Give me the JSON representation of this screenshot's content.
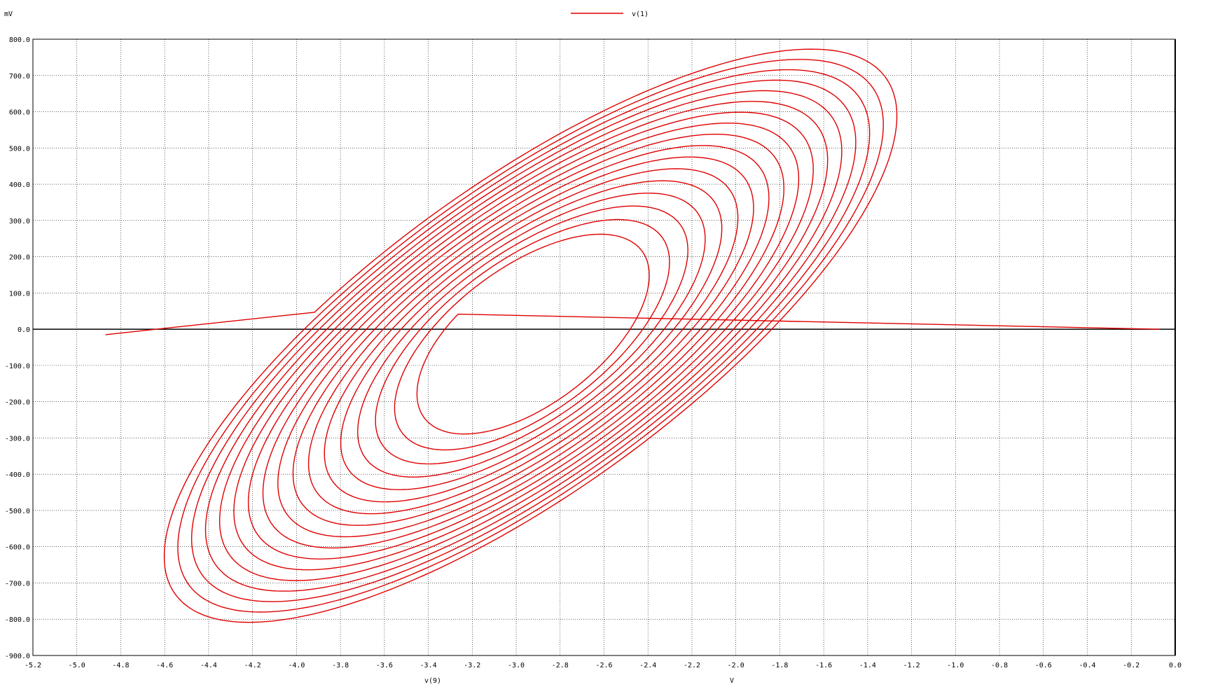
{
  "chart_data": {
    "type": "line",
    "title": "",
    "legend": {
      "placement": "top-center",
      "entries": [
        "v(1)"
      ]
    },
    "xlabel": "v(9)",
    "xunit_label": "V",
    "yunit_label": "mV",
    "xlim": [
      -5.2,
      0.0
    ],
    "ylim": [
      -900,
      800
    ],
    "grid": true,
    "x_ticks": [
      -5.2,
      -5.0,
      -4.8,
      -4.6,
      -4.4,
      -4.2,
      -4.0,
      -3.8,
      -3.6,
      -3.4,
      -3.2,
      -3.0,
      -2.8,
      -2.6,
      -2.4,
      -2.2,
      -2.0,
      -1.8,
      -1.6,
      -1.4,
      -1.2,
      -1.0,
      -0.8,
      -0.6,
      -0.4,
      -0.2,
      0.0
    ],
    "x_tick_labels": [
      "-5.2",
      "-5.0",
      "-4.8",
      "-4.6",
      "-4.4",
      "-4.2",
      "-4.0",
      "-3.8",
      "-3.6",
      "-3.4",
      "-3.2",
      "-3.0",
      "-2.8",
      "-2.6",
      "-2.4",
      "-2.2",
      "-2.0",
      "-1.8",
      "-1.6",
      "-1.4",
      "-1.2",
      "-1.0",
      "-0.8",
      "-0.6",
      "-0.4",
      "-0.2",
      "0.0"
    ],
    "y_ticks": [
      800,
      700,
      600,
      500,
      400,
      300,
      200,
      100,
      0,
      -100,
      -200,
      -300,
      -400,
      -500,
      -600,
      -700,
      -800,
      -900
    ],
    "y_tick_labels": [
      "800.0",
      "700.0",
      "600.0",
      "500.0",
      "400.0",
      "300.0",
      "200.0",
      "100.0",
      "0.0",
      "-100.0",
      "-200.0",
      "-300.0",
      "-400.0",
      "-500.0",
      "-600.0",
      "-700.0",
      "-800.0",
      "-900.0"
    ],
    "series": [
      {
        "name": "v(1)",
        "color": "#e00000",
        "shape": "spiral",
        "start_point": [
          -0.07,
          0
        ],
        "end_point": [
          -4.87,
          -15
        ],
        "spiral_turns": 17,
        "spiral_center": [
          -2.95,
          -25
        ],
        "inner_extent": {
          "x": [
            -3.6,
            -2.4
          ],
          "y": [
            -300,
            290
          ]
        },
        "outer_extent": {
          "x": [
            -5.07,
            -1.3
          ],
          "y": [
            -815,
            795
          ]
        },
        "approx_points": [
          [
            -0.07,
            0
          ],
          [
            -1.0,
            -95
          ],
          [
            -2.0,
            -250
          ],
          [
            -3.2,
            -305
          ],
          [
            -3.6,
            -100
          ],
          [
            -2.75,
            290
          ],
          [
            -2.4,
            100
          ],
          [
            -4.0,
            -815
          ],
          [
            -5.07,
            -340
          ],
          [
            -2.25,
            795
          ],
          [
            -1.3,
            330
          ],
          [
            -4.87,
            -15
          ]
        ]
      }
    ]
  }
}
